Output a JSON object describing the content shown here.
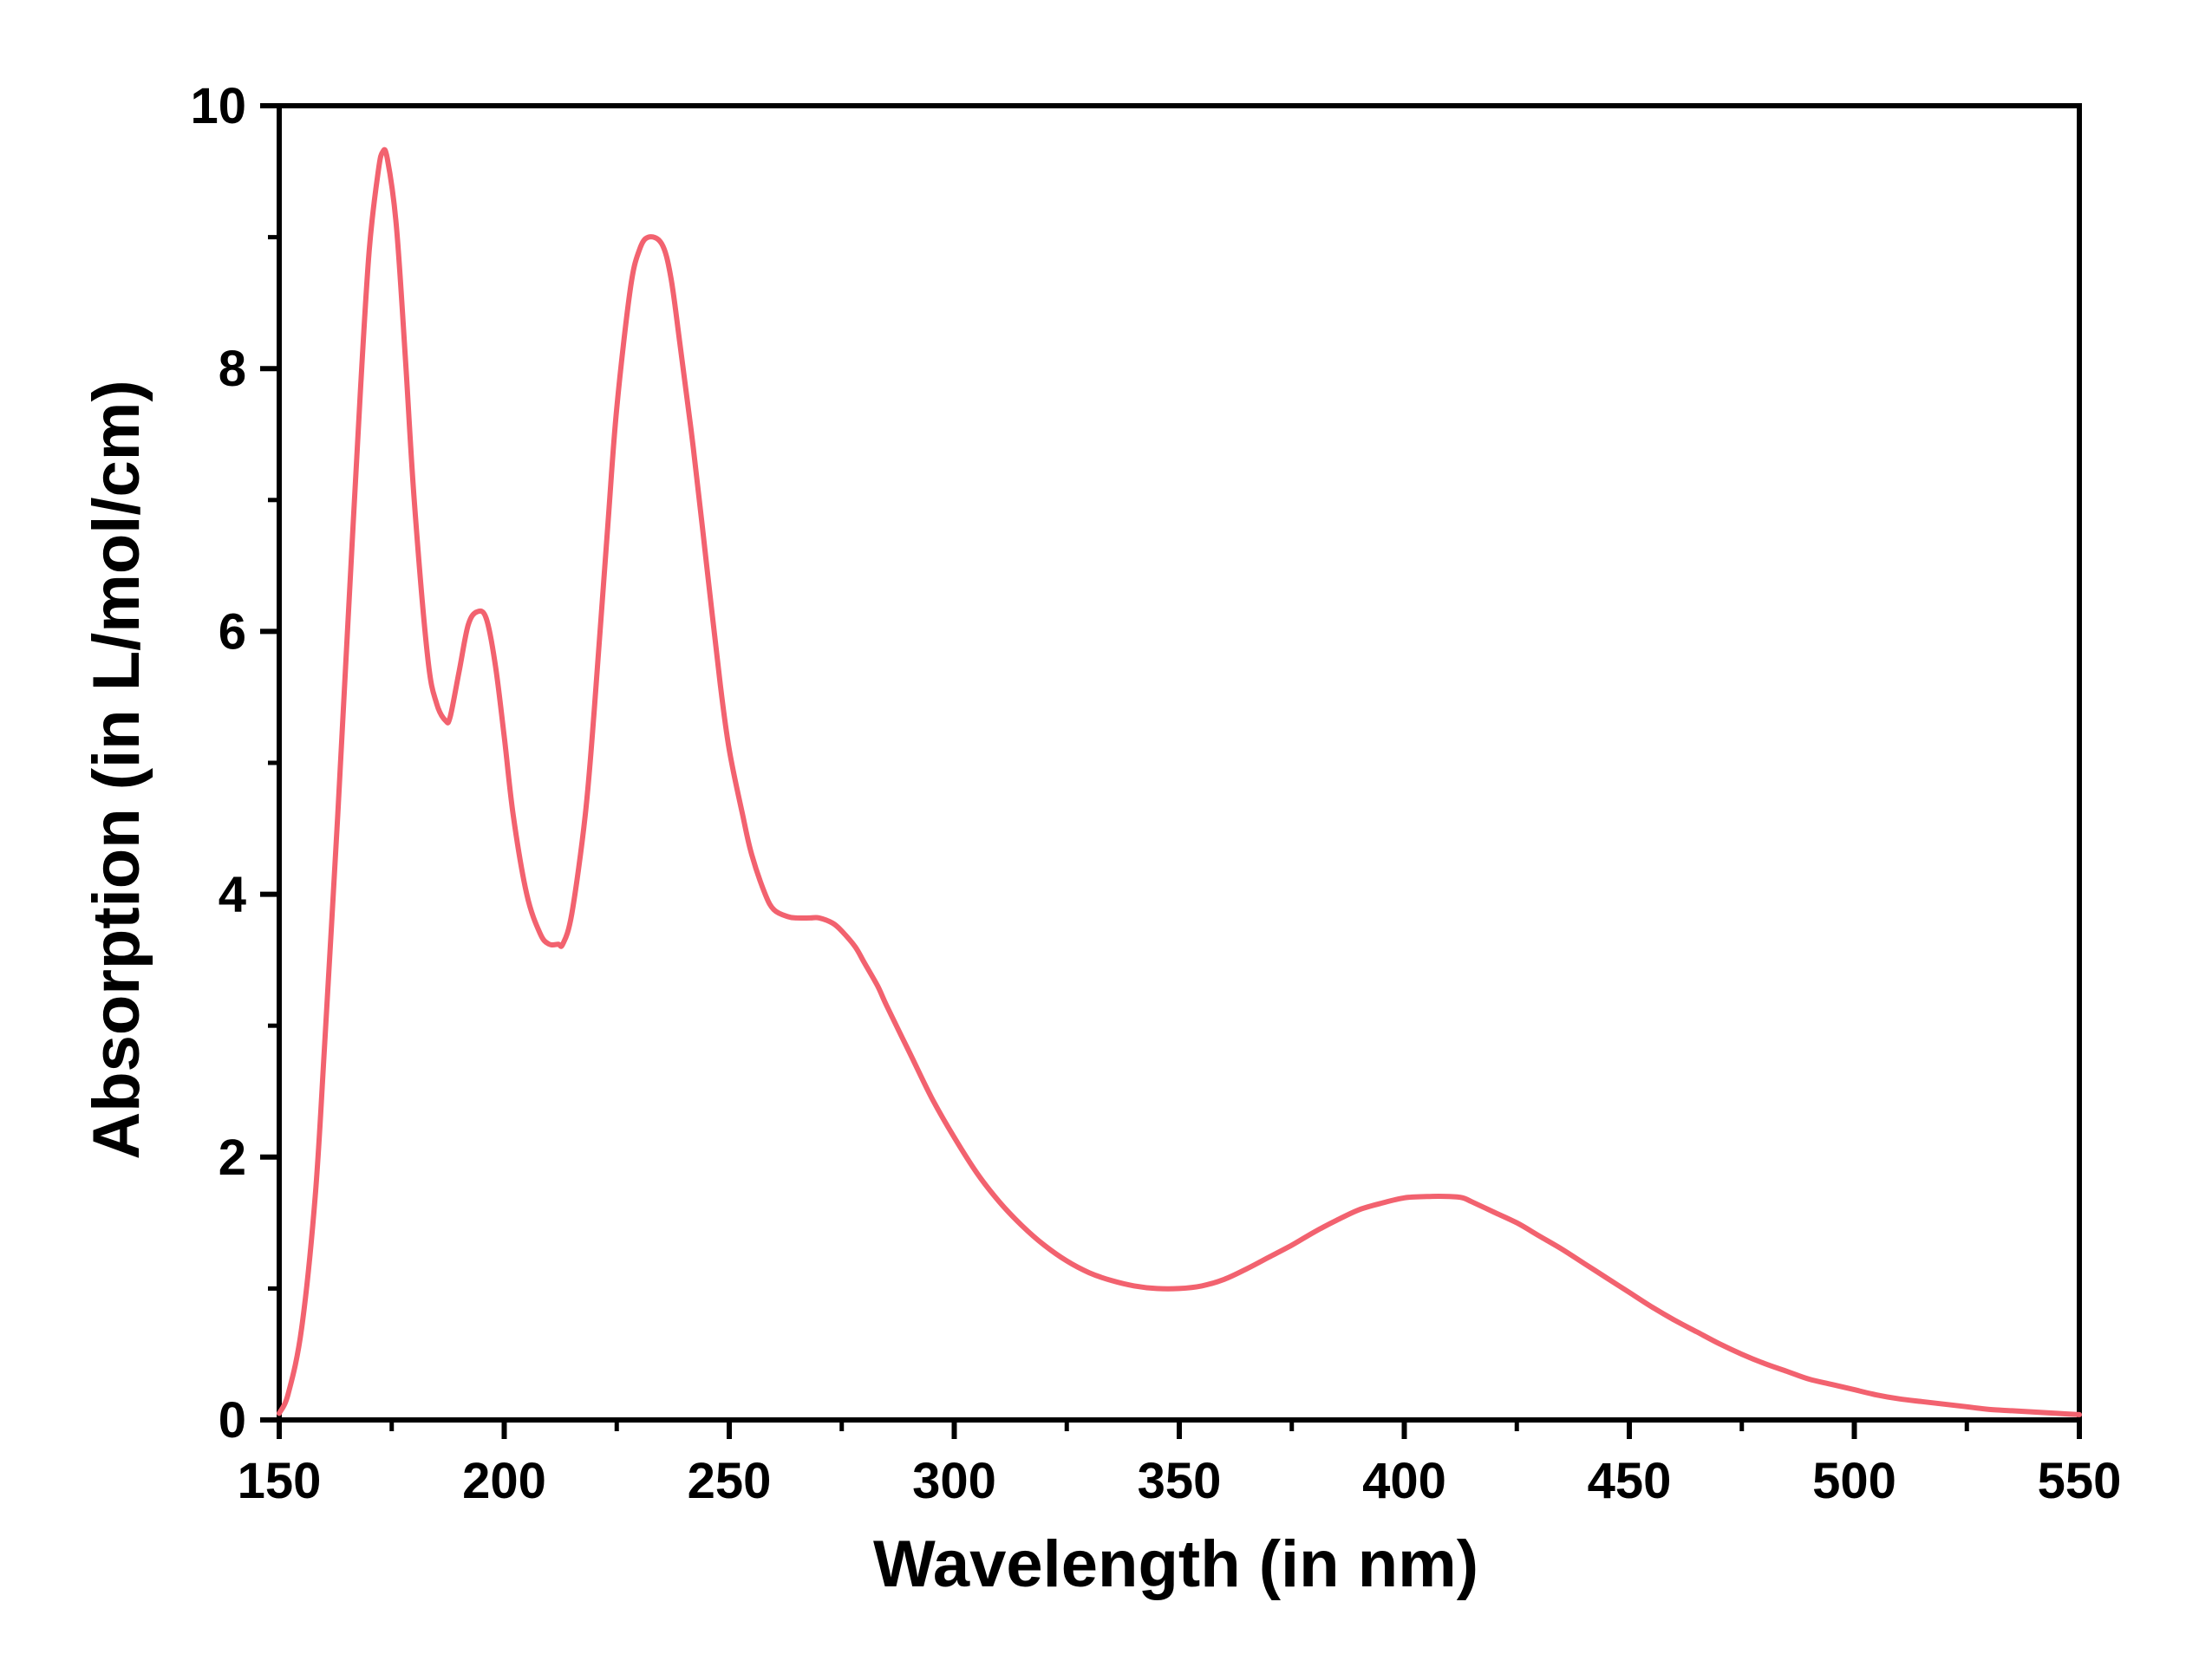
{
  "chart_data": {
    "type": "line",
    "title": "",
    "xlabel": "Wavelength (in nm)",
    "ylabel": "Absorption (in L/mol/cm)",
    "xlim": [
      150,
      550
    ],
    "ylim": [
      0,
      10
    ],
    "x_major_ticks": [
      150,
      200,
      250,
      300,
      350,
      400,
      450,
      500,
      550
    ],
    "x_tick_labels": [
      "150",
      "200",
      "250",
      "300",
      "350",
      "400",
      "450",
      "500",
      "550"
    ],
    "x_minor_ticks": [
      175,
      225,
      275,
      325,
      375,
      425,
      475,
      525
    ],
    "y_major_ticks": [
      0,
      2,
      4,
      6,
      8,
      10
    ],
    "y_tick_labels": [
      "0",
      "2",
      "4",
      "6",
      "8",
      "10"
    ],
    "y_minor_ticks": [
      1,
      3,
      5,
      7,
      9
    ],
    "grid": false,
    "legend": "none",
    "line_color": "#f2626f",
    "axis_color": "#000000",
    "series": [
      {
        "x": [
          150,
          152,
          155,
          158,
          160,
          163,
          165,
          168,
          170,
          172,
          173,
          174,
          176,
          178,
          180,
          183,
          185,
          187,
          188,
          190,
          192,
          194,
          196,
          198,
          200,
          202,
          205,
          208,
          210,
          212,
          213,
          215,
          218,
          220,
          223,
          225,
          228,
          230,
          232,
          235,
          237,
          239,
          242,
          245,
          248,
          250,
          253,
          255,
          258,
          260,
          263,
          265,
          268,
          270,
          273,
          275,
          278,
          280,
          283,
          285,
          290,
          295,
          300,
          305,
          310,
          315,
          320,
          325,
          330,
          335,
          340,
          345,
          350,
          355,
          360,
          365,
          370,
          375,
          380,
          385,
          390,
          395,
          400,
          405,
          410,
          413,
          415,
          420,
          425,
          430,
          435,
          440,
          445,
          450,
          455,
          460,
          465,
          470,
          475,
          480,
          485,
          490,
          495,
          500,
          505,
          510,
          515,
          520,
          525,
          530,
          535,
          540,
          545,
          550
        ],
        "y": [
          0.05,
          0.2,
          0.7,
          1.7,
          2.8,
          4.6,
          5.9,
          7.8,
          8.9,
          9.5,
          9.65,
          9.6,
          9.1,
          8.1,
          7.0,
          5.8,
          5.45,
          5.32,
          5.35,
          5.7,
          6.05,
          6.15,
          6.1,
          5.75,
          5.2,
          4.6,
          4.0,
          3.7,
          3.62,
          3.62,
          3.62,
          3.85,
          4.6,
          5.4,
          6.8,
          7.7,
          8.6,
          8.9,
          9.0,
          8.95,
          8.7,
          8.2,
          7.4,
          6.5,
          5.6,
          5.1,
          4.6,
          4.3,
          4.0,
          3.88,
          3.83,
          3.82,
          3.82,
          3.82,
          3.78,
          3.72,
          3.6,
          3.48,
          3.3,
          3.15,
          2.8,
          2.45,
          2.15,
          1.88,
          1.66,
          1.48,
          1.33,
          1.21,
          1.12,
          1.06,
          1.02,
          1.0,
          1.0,
          1.02,
          1.07,
          1.15,
          1.24,
          1.33,
          1.43,
          1.52,
          1.6,
          1.65,
          1.69,
          1.7,
          1.7,
          1.69,
          1.66,
          1.58,
          1.5,
          1.4,
          1.3,
          1.19,
          1.08,
          0.97,
          0.86,
          0.76,
          0.67,
          0.58,
          0.5,
          0.43,
          0.37,
          0.31,
          0.27,
          0.23,
          0.19,
          0.16,
          0.14,
          0.12,
          0.1,
          0.08,
          0.07,
          0.06,
          0.05,
          0.04
        ]
      }
    ]
  }
}
